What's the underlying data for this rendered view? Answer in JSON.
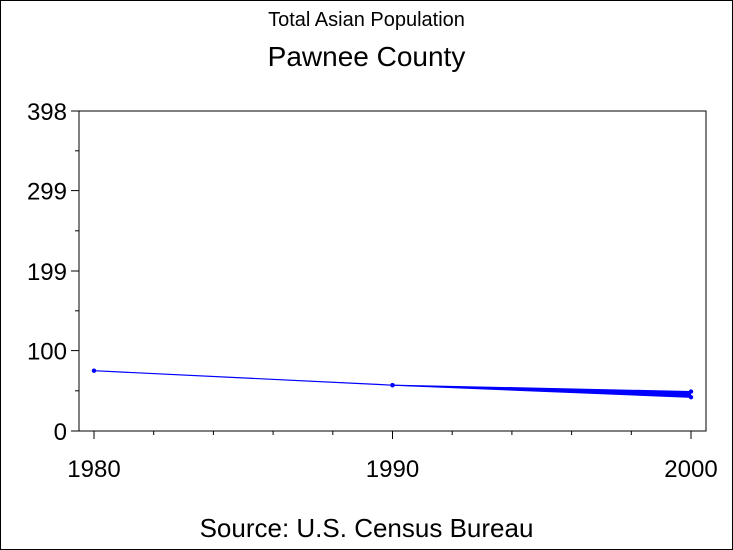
{
  "chart_data": {
    "type": "line",
    "title": "Total Asian Population",
    "subtitle": "Pawnee County",
    "source": "Source: U.S. Census Bureau",
    "xlabel": "",
    "ylabel": "",
    "x_ticks": [
      "1980",
      "1990",
      "2000"
    ],
    "y_ticks": [
      "0",
      "100",
      "199",
      "299",
      "398"
    ],
    "xlim": [
      1980,
      2000
    ],
    "ylim": [
      0,
      398
    ],
    "series": [
      {
        "color": "#0000ff",
        "points": [
          {
            "x": 1980,
            "y": 75
          },
          {
            "x": 1990,
            "y": 57
          },
          {
            "x": 2000,
            "y": 49
          }
        ]
      },
      {
        "color": "#0000ff",
        "points": [
          {
            "x": 1990,
            "y": 57
          },
          {
            "x": 2000,
            "y": 42
          }
        ]
      }
    ]
  }
}
